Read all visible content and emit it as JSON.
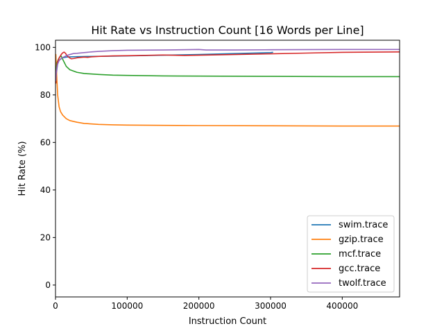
{
  "chart_data": {
    "type": "line",
    "title": "Hit Rate vs Instruction Count [16 Words per Line]",
    "xlabel": "Instruction Count",
    "ylabel": "Hit Rate (%)",
    "xlim": [
      0,
      480000
    ],
    "ylim": [
      -5,
      103
    ],
    "xticks": [
      0,
      100000,
      200000,
      300000,
      400000
    ],
    "yticks": [
      0,
      20,
      40,
      60,
      80,
      100
    ],
    "grid": false,
    "legend_position": "lower-right",
    "series": [
      {
        "name": "swim.trace",
        "color": "#1f77b4",
        "x": [
          500,
          1000,
          2000,
          3000,
          5000,
          8000,
          10000,
          15000,
          20000,
          30000,
          50000,
          80000,
          100000,
          150000,
          200000,
          250000,
          300000,
          303000
        ],
        "y": [
          85,
          88,
          91,
          93,
          94.5,
          95.3,
          95.6,
          95.9,
          96.0,
          96.1,
          96.2,
          96.3,
          96.4,
          96.7,
          97.0,
          97.4,
          97.8,
          97.9
        ]
      },
      {
        "name": "gzip.trace",
        "color": "#ff7f0e",
        "x": [
          500,
          1000,
          2000,
          3000,
          5000,
          7000,
          10000,
          15000,
          20000,
          30000,
          40000,
          60000,
          80000,
          100000,
          150000,
          200000,
          300000,
          400000,
          480000
        ],
        "y": [
          97,
          93,
          86,
          80,
          75,
          73,
          71.5,
          70,
          69.2,
          68.5,
          68.0,
          67.6,
          67.4,
          67.3,
          67.2,
          67.1,
          67.0,
          66.9,
          66.9
        ]
      },
      {
        "name": "mcf.trace",
        "color": "#2ca02c",
        "x": [
          500,
          1000,
          2000,
          4000,
          6000,
          8000,
          10000,
          15000,
          20000,
          30000,
          40000,
          60000,
          80000,
          100000,
          150000,
          200000,
          300000,
          400000,
          480000
        ],
        "y": [
          88,
          91,
          93.5,
          95,
          96,
          96.3,
          95.0,
          92.0,
          90.6,
          89.5,
          89.0,
          88.6,
          88.3,
          88.2,
          88.0,
          87.9,
          87.8,
          87.7,
          87.7
        ]
      },
      {
        "name": "gcc.trace",
        "color": "#d62728",
        "x": [
          500,
          1000,
          2000,
          3000,
          5000,
          8000,
          10000,
          12000,
          14000,
          16000,
          18000,
          20000,
          22000,
          25000,
          30000,
          40000,
          45000,
          50000,
          60000,
          80000,
          100000,
          120000,
          150000,
          180000,
          200000,
          250000,
          300000,
          350000,
          400000,
          480000
        ],
        "y": [
          85,
          89,
          92,
          94,
          95.5,
          97,
          97.7,
          98.0,
          97.5,
          96.5,
          96.0,
          95.5,
          95.2,
          95.3,
          95.6,
          95.9,
          95.8,
          96.0,
          96.2,
          96.4,
          96.5,
          96.6,
          96.8,
          96.6,
          96.7,
          97.0,
          97.3,
          97.6,
          97.9,
          98.1
        ]
      },
      {
        "name": "twolf.trace",
        "color": "#9467bd",
        "x": [
          500,
          1000,
          2000,
          3000,
          5000,
          8000,
          10000,
          15000,
          20000,
          25000,
          30000,
          40000,
          50000,
          60000,
          80000,
          100000,
          150000,
          200000,
          210000,
          250000,
          300000,
          400000,
          480000
        ],
        "y": [
          86,
          89,
          91.5,
          93,
          94.5,
          95.3,
          95.7,
          96.5,
          97.0,
          97.4,
          97.5,
          97.8,
          98.1,
          98.3,
          98.6,
          98.8,
          98.9,
          99.1,
          98.9,
          98.9,
          99.0,
          99.1,
          99.1
        ]
      }
    ]
  }
}
